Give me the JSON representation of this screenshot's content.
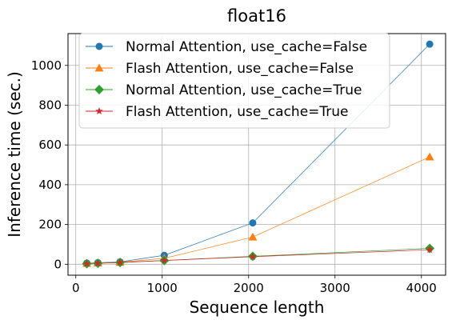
{
  "chart_data": {
    "type": "line",
    "title": "float16",
    "xlabel": "Sequence length",
    "ylabel": "Inference time (sec.)",
    "xlim": [
      -90,
      4280
    ],
    "ylim": [
      -55,
      1160
    ],
    "xticks": [
      0,
      1000,
      2000,
      3000,
      4000
    ],
    "yticks": [
      0,
      200,
      400,
      600,
      800,
      1000
    ],
    "grid": true,
    "legend_position": "top-left",
    "x": [
      128,
      256,
      512,
      1024,
      2048,
      4096
    ],
    "series": [
      {
        "name": "Normal Attention, use_cache=False",
        "color": "#1f77b4",
        "marker": "circle",
        "values": [
          6,
          8,
          12,
          45,
          208,
          1107
        ]
      },
      {
        "name": "Flash Attention, use_cache=False",
        "color": "#ff7f0e",
        "marker": "triangle",
        "values": [
          5,
          7,
          10,
          30,
          137,
          540
        ]
      },
      {
        "name": "Normal Attention, use_cache=True",
        "color": "#2ca02c",
        "marker": "diamond",
        "values": [
          3,
          5,
          9,
          19,
          40,
          80
        ]
      },
      {
        "name": "Flash Attention, use_cache=True",
        "color": "#d62728",
        "marker": "star",
        "values": [
          3,
          5,
          9,
          19,
          38,
          73
        ]
      }
    ]
  }
}
